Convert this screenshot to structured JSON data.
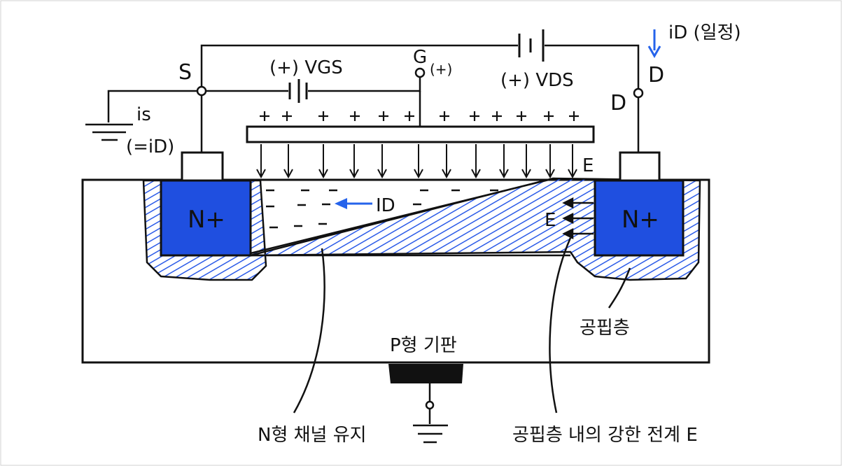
{
  "labels": {
    "source": "S",
    "gate": "G",
    "gate_polarity": "(+)",
    "drain_top": "D",
    "drain": "D",
    "vgs": "(+) VGS",
    "vds": "(+) VDS",
    "id_const": "iD (일정)",
    "is": "is",
    "is_eq": "(=iD)",
    "e_top": "E",
    "e_side": "E",
    "id_channel": "ID",
    "nplus_left": "N+",
    "nplus_right": "N+",
    "substrate": "P형 기판",
    "depletion": "공핍층",
    "channel_note": "N형 채널 유지",
    "field_note": "공핍층 내의 강한 전계 E"
  },
  "colors": {
    "ink": "#111111",
    "n_region": "#1f4fe0",
    "hatch": "#2b5be8",
    "current_arrow": "#2563eb"
  }
}
